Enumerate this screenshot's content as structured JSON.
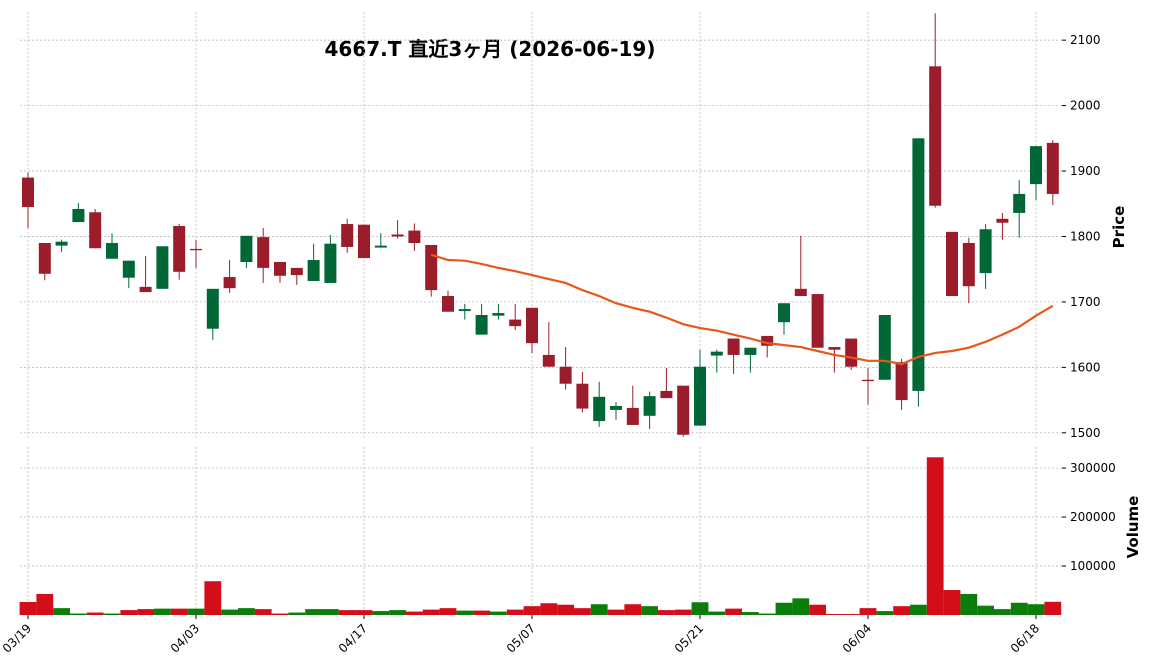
{
  "chart_data": {
    "type": "candlestick",
    "title": "4667.T  直近3ヶ月  (2026-06-19)",
    "categories": [
      "03/19",
      null,
      null,
      null,
      null,
      null,
      null,
      null,
      null,
      null,
      "04/03",
      null,
      null,
      null,
      null,
      null,
      null,
      null,
      null,
      null,
      "04/17",
      null,
      null,
      null,
      null,
      null,
      null,
      null,
      null,
      null,
      "05/07",
      null,
      null,
      null,
      null,
      null,
      null,
      null,
      null,
      null,
      "05/21",
      null,
      null,
      null,
      null,
      null,
      null,
      null,
      null,
      null,
      "06/04",
      null,
      null,
      null,
      null,
      null,
      null,
      null,
      null,
      null,
      "06/18",
      null
    ],
    "open": [
      1890,
      1790,
      1786,
      1822,
      1837,
      1766,
      1737,
      1723,
      1720,
      1816,
      1781,
      1659,
      1738,
      1761,
      1799,
      1761,
      1752,
      1732,
      1729,
      1819,
      1818,
      1783,
      1803,
      1809,
      1787,
      1709,
      1686,
      1650,
      1679,
      1673,
      1691,
      1619,
      1601,
      1575,
      1518,
      1535,
      1538,
      1526,
      1564,
      1572,
      1511,
      1618,
      1644,
      1619,
      1648,
      1669,
      1720,
      1712,
      1631,
      1644,
      1581,
      1581,
      1608,
      1564,
      2060,
      1807,
      1790,
      1744,
      1827,
      1836,
      1880,
      1943
    ],
    "high": [
      1898,
      1790,
      1795,
      1851,
      1842,
      1805,
      1763,
      1770,
      1785,
      1819,
      1795,
      1720,
      1764,
      1801,
      1813,
      1761,
      1752,
      1789,
      1802,
      1827,
      1818,
      1805,
      1825,
      1820,
      1787,
      1717,
      1697,
      1697,
      1697,
      1697,
      1691,
      1669,
      1631,
      1593,
      1578,
      1547,
      1572,
      1563,
      1599,
      1572,
      1627,
      1627,
      1644,
      1630,
      1648,
      1698,
      1801,
      1712,
      1631,
      1644,
      1599,
      1680,
      1613,
      1950,
      2141,
      1807,
      1798,
      1819,
      1836,
      1886,
      1938,
      1947
    ],
    "low": [
      1813,
      1733,
      1776,
      1822,
      1782,
      1766,
      1721,
      1715,
      1720,
      1734,
      1752,
      1642,
      1714,
      1752,
      1729,
      1729,
      1726,
      1732,
      1729,
      1775,
      1767,
      1783,
      1797,
      1778,
      1708,
      1685,
      1673,
      1650,
      1673,
      1657,
      1622,
      1601,
      1566,
      1531,
      1509,
      1520,
      1512,
      1506,
      1553,
      1494,
      1511,
      1592,
      1590,
      1592,
      1615,
      1650,
      1709,
      1630,
      1592,
      1596,
      1543,
      1581,
      1535,
      1540,
      1844,
      1709,
      1698,
      1720,
      1795,
      1798,
      1856,
      1848
    ],
    "close": [
      1845,
      1743,
      1792,
      1842,
      1782,
      1790,
      1763,
      1715,
      1785,
      1746,
      1779,
      1720,
      1721,
      1801,
      1752,
      1740,
      1741,
      1764,
      1789,
      1784,
      1767,
      1786,
      1800,
      1790,
      1718,
      1685,
      1689,
      1680,
      1683,
      1663,
      1637,
      1601,
      1575,
      1537,
      1555,
      1541,
      1512,
      1556,
      1553,
      1497,
      1601,
      1624,
      1619,
      1630,
      1633,
      1698,
      1709,
      1630,
      1627,
      1601,
      1579,
      1680,
      1550,
      1950,
      1847,
      1709,
      1724,
      1811,
      1821,
      1865,
      1938,
      1865
    ],
    "volume": [
      26500,
      43000,
      14000,
      3000,
      5000,
      3000,
      10000,
      12000,
      13000,
      13000,
      13000,
      69000,
      11000,
      14000,
      12000,
      3000,
      5000,
      12000,
      12000,
      10000,
      10000,
      8000,
      10000,
      7000,
      11000,
      14000,
      9000,
      9000,
      7000,
      11000,
      18000,
      24000,
      21000,
      14000,
      22000,
      11000,
      22000,
      18000,
      10000,
      11000,
      26000,
      7000,
      13000,
      6000,
      3000,
      25000,
      34000,
      21000,
      2000,
      2000,
      14000,
      8000,
      18000,
      21000,
      322000,
      51000,
      43000,
      19000,
      12000,
      25000,
      22000,
      27000
    ],
    "ma": {
      "color": "#e8561a",
      "values": [
        null,
        null,
        null,
        null,
        null,
        null,
        null,
        null,
        null,
        null,
        null,
        null,
        null,
        null,
        null,
        null,
        null,
        null,
        null,
        null,
        null,
        null,
        null,
        null,
        1772,
        1764,
        1763,
        1758,
        1752,
        1747,
        1741,
        1735,
        1729,
        1718,
        1709,
        1698,
        1691,
        1685,
        1676,
        1666,
        1660,
        1656,
        1650,
        1644,
        1637,
        1634,
        1631,
        1625,
        1619,
        1615,
        1610,
        1610,
        1605,
        1616,
        1622,
        1625,
        1630,
        1639,
        1650,
        1662,
        1679,
        1694
      ]
    },
    "up_color": "#006837",
    "down_color": "#9b1c2a",
    "volume_up_color": "#0a7d0a",
    "volume_down_color": "#d40d1b",
    "ylim": [
      1489,
      2143
    ],
    "yticks": [
      1500,
      1600,
      1700,
      1800,
      1900,
      2000,
      2100
    ],
    "ylabel": "Price",
    "volume_ylim": [
      0,
      343000
    ],
    "volume_yticks": [
      100000,
      200000,
      300000
    ],
    "volume_label": "Volume",
    "grid": true
  }
}
